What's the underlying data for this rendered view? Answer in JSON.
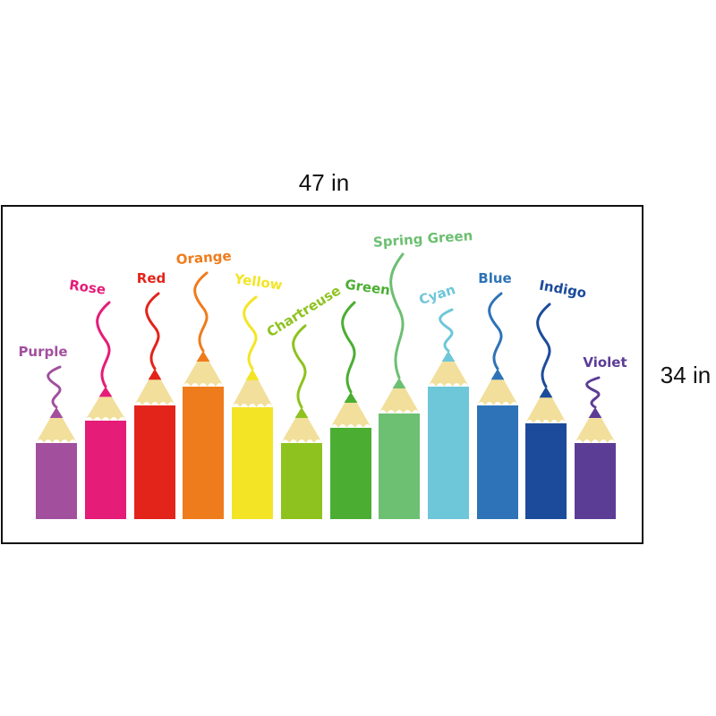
{
  "dimensions": {
    "width": "47 in",
    "height": "34 in"
  },
  "pencils": [
    {
      "label": "Purple",
      "color": "#a2509e"
    },
    {
      "label": "Rose",
      "color": "#e51c78"
    },
    {
      "label": "Red",
      "color": "#e3241b"
    },
    {
      "label": "Orange",
      "color": "#ef7c1c"
    },
    {
      "label": "Yellow",
      "color": "#f3e526"
    },
    {
      "label": "Chartreuse",
      "color": "#8ec21f"
    },
    {
      "label": "Green",
      "color": "#4bae32"
    },
    {
      "label": "Spring Green",
      "color": "#6dbf72"
    },
    {
      "label": "Cyan",
      "color": "#6ec6d9"
    },
    {
      "label": "Blue",
      "color": "#2e73b8"
    },
    {
      "label": "Indigo",
      "color": "#1c4b9b"
    },
    {
      "label": "Violet",
      "color": "#5c3d96"
    }
  ]
}
